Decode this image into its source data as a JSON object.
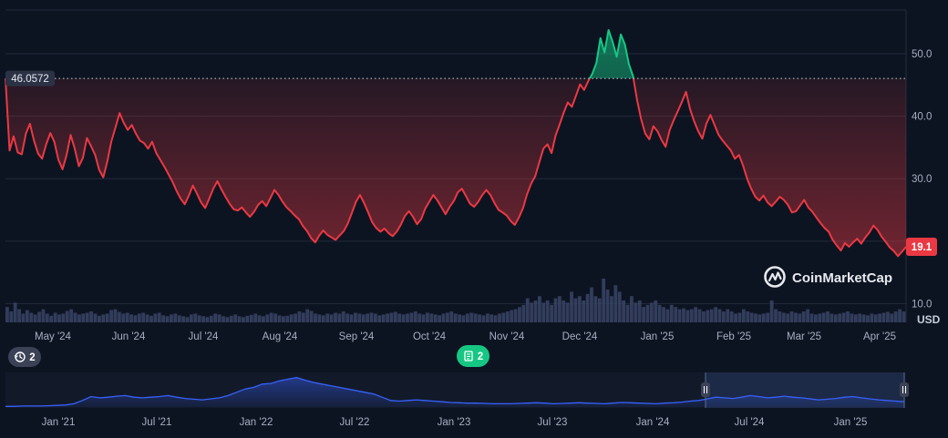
{
  "chart_data": {
    "type": "line",
    "currency_label": "USD",
    "watermark": "CoinMarketCap",
    "y_ticks": [
      10.0,
      20.0,
      30.0,
      40.0,
      50.0
    ],
    "y_tick_labels": [
      "10.0",
      "",
      "30.0",
      "40.0",
      "50.0"
    ],
    "ylim": [
      7,
      57
    ],
    "baseline_value": 46.0572,
    "baseline_label": "46.0572",
    "current_value": 19.1,
    "current_label": "19.1",
    "x_tick_labels": [
      "May '24",
      "Jun '24",
      "Jul '24",
      "Aug '24",
      "Sep '24",
      "Oct '24",
      "Nov '24",
      "Dec '24",
      "Jan '25",
      "Feb '25",
      "Mar '25",
      "Apr '25"
    ],
    "colors": {
      "below": "#ea3943",
      "above": "#16c784",
      "background": "#0d1421",
      "volume": "#3a4466",
      "navigator": "#3861fb"
    },
    "series": [
      {
        "values": [
          46.06,
          34.5,
          36.8,
          34.2,
          33.9,
          37.2,
          38.8,
          36.1,
          34.0,
          33.2,
          35.5,
          37.3,
          35.9,
          33.0,
          31.5,
          33.8,
          37.0,
          34.8,
          32.0,
          33.3,
          36.5,
          35.2,
          33.8,
          31.4,
          30.2,
          32.8,
          36.0,
          38.2,
          40.5,
          39.0,
          37.8,
          38.6,
          37.2,
          36.1,
          35.7,
          34.8,
          35.9,
          34.1,
          33.0,
          31.9,
          30.7,
          29.5,
          28.0,
          26.8,
          25.9,
          27.3,
          28.9,
          27.6,
          26.2,
          25.3,
          26.8,
          28.4,
          29.6,
          28.3,
          27.1,
          26.0,
          25.1,
          24.9,
          25.4,
          24.6,
          23.9,
          24.7,
          25.8,
          26.4,
          25.6,
          26.9,
          28.2,
          27.4,
          26.3,
          25.4,
          24.8,
          24.1,
          23.5,
          22.4,
          21.6,
          20.5,
          19.8,
          20.9,
          21.7,
          21.0,
          20.6,
          20.2,
          20.9,
          21.6,
          22.8,
          24.5,
          26.3,
          27.4,
          26.1,
          24.6,
          23.0,
          22.1,
          21.5,
          22.0,
          21.3,
          20.8,
          21.5,
          22.6,
          24.0,
          24.8,
          23.9,
          22.7,
          23.5,
          25.2,
          26.3,
          27.4,
          26.5,
          25.4,
          24.3,
          25.5,
          26.4,
          27.8,
          28.4,
          27.2,
          26.0,
          25.5,
          26.3,
          27.4,
          28.2,
          27.4,
          26.1,
          25.0,
          24.6,
          24.1,
          23.2,
          22.6,
          23.8,
          25.3,
          27.5,
          29.2,
          30.4,
          32.6,
          34.8,
          35.5,
          34.1,
          36.9,
          38.7,
          40.6,
          42.2,
          41.5,
          43.3,
          45.1,
          44.2,
          45.6,
          46.8,
          48.5,
          52.5,
          50.2,
          53.8,
          51.9,
          49.5,
          53.1,
          51.5,
          48.3,
          46.4,
          42.6,
          39.5,
          37.2,
          36.3,
          38.4,
          37.6,
          36.2,
          35.1,
          37.8,
          39.4,
          40.8,
          42.3,
          43.9,
          41.1,
          39.2,
          37.6,
          36.4,
          38.8,
          40.2,
          38.6,
          37.0,
          36.1,
          35.3,
          34.5,
          33.2,
          33.8,
          32.1,
          30.0,
          28.4,
          27.1,
          26.5,
          27.3,
          26.2,
          25.6,
          26.3,
          27.1,
          26.6,
          25.8,
          24.6,
          24.8,
          25.7,
          26.6,
          25.4,
          24.7,
          23.8,
          22.9,
          22.1,
          21.5,
          20.2,
          19.3,
          18.5,
          19.7,
          19.1,
          19.8,
          20.4,
          19.6,
          20.6,
          21.4,
          22.5,
          21.8,
          20.7,
          19.9,
          19.0,
          18.4,
          17.6,
          18.3,
          19.1
        ]
      }
    ],
    "volume": [
      0.35,
      0.25,
      0.45,
      0.3,
      0.2,
      0.28,
      0.22,
      0.18,
      0.24,
      0.3,
      0.2,
      0.15,
      0.22,
      0.18,
      0.2,
      0.26,
      0.3,
      0.22,
      0.18,
      0.2,
      0.22,
      0.25,
      0.2,
      0.15,
      0.18,
      0.2,
      0.28,
      0.3,
      0.24,
      0.2,
      0.22,
      0.18,
      0.16,
      0.2,
      0.22,
      0.18,
      0.15,
      0.2,
      0.22,
      0.16,
      0.14,
      0.18,
      0.2,
      0.16,
      0.14,
      0.12,
      0.18,
      0.2,
      0.16,
      0.14,
      0.12,
      0.15,
      0.2,
      0.18,
      0.14,
      0.12,
      0.15,
      0.18,
      0.14,
      0.12,
      0.15,
      0.17,
      0.2,
      0.16,
      0.14,
      0.18,
      0.22,
      0.2,
      0.16,
      0.14,
      0.15,
      0.18,
      0.2,
      0.25,
      0.22,
      0.3,
      0.26,
      0.2,
      0.18,
      0.16,
      0.2,
      0.18,
      0.22,
      0.2,
      0.25,
      0.2,
      0.18,
      0.22,
      0.2,
      0.18,
      0.2,
      0.22,
      0.2,
      0.16,
      0.18,
      0.2,
      0.22,
      0.24,
      0.2,
      0.18,
      0.2,
      0.22,
      0.25,
      0.2,
      0.18,
      0.22,
      0.2,
      0.18,
      0.16,
      0.2,
      0.22,
      0.25,
      0.2,
      0.18,
      0.16,
      0.2,
      0.22,
      0.2,
      0.18,
      0.16,
      0.2,
      0.18,
      0.16,
      0.2,
      0.22,
      0.25,
      0.28,
      0.3,
      0.35,
      0.4,
      0.55,
      0.45,
      0.5,
      0.6,
      0.45,
      0.5,
      0.4,
      0.55,
      0.6,
      0.5,
      0.45,
      0.7,
      0.55,
      0.6,
      0.5,
      0.65,
      0.8,
      0.6,
      0.55,
      1.0,
      0.75,
      0.6,
      0.85,
      0.7,
      0.5,
      0.4,
      0.6,
      0.45,
      0.5,
      0.35,
      0.4,
      0.45,
      0.5,
      0.4,
      0.35,
      0.3,
      0.4,
      0.35,
      0.3,
      0.32,
      0.28,
      0.3,
      0.35,
      0.3,
      0.25,
      0.28,
      0.3,
      0.35,
      0.3,
      0.25,
      0.3,
      0.25,
      0.2,
      0.22,
      0.3,
      0.25,
      0.22,
      0.2,
      0.18,
      0.2,
      0.22,
      0.5,
      0.3,
      0.25,
      0.22,
      0.2,
      0.25,
      0.22,
      0.2,
      0.25,
      0.3,
      0.2,
      0.18,
      0.2,
      0.22,
      0.25,
      0.2,
      0.18,
      0.2,
      0.22,
      0.25,
      0.2,
      0.18,
      0.2,
      0.18,
      0.16,
      0.2,
      0.18,
      0.2,
      0.22,
      0.24,
      0.2,
      0.25,
      0.3,
      0.25
    ],
    "overview": {
      "x_tick_labels": [
        "Jan '21",
        "Jul '21",
        "Jan '22",
        "Jul '22",
        "Jan '23",
        "Jul '23",
        "Jan '24",
        "Jul '24",
        "Jan '25"
      ],
      "values": [
        0.02,
        0.02,
        0.03,
        0.03,
        0.03,
        0.04,
        0.05,
        0.06,
        0.1,
        0.2,
        0.32,
        0.28,
        0.3,
        0.33,
        0.35,
        0.3,
        0.28,
        0.3,
        0.32,
        0.35,
        0.3,
        0.26,
        0.24,
        0.22,
        0.25,
        0.28,
        0.35,
        0.45,
        0.55,
        0.6,
        0.7,
        0.72,
        0.8,
        0.85,
        0.9,
        0.82,
        0.75,
        0.7,
        0.65,
        0.6,
        0.55,
        0.5,
        0.45,
        0.4,
        0.3,
        0.2,
        0.18,
        0.2,
        0.22,
        0.2,
        0.18,
        0.16,
        0.14,
        0.13,
        0.12,
        0.12,
        0.11,
        0.1,
        0.1,
        0.1,
        0.11,
        0.12,
        0.13,
        0.12,
        0.1,
        0.11,
        0.12,
        0.13,
        0.12,
        0.11,
        0.1,
        0.12,
        0.14,
        0.13,
        0.12,
        0.11,
        0.1,
        0.12,
        0.13,
        0.15,
        0.18,
        0.2,
        0.25,
        0.3,
        0.28,
        0.26,
        0.3,
        0.35,
        0.32,
        0.28,
        0.3,
        0.33,
        0.3,
        0.28,
        0.25,
        0.22,
        0.24,
        0.26,
        0.3,
        0.32,
        0.28,
        0.25,
        0.22,
        0.2,
        0.18,
        0.16
      ]
    },
    "indicators": {
      "events_count": "2",
      "news_count": "2"
    }
  }
}
